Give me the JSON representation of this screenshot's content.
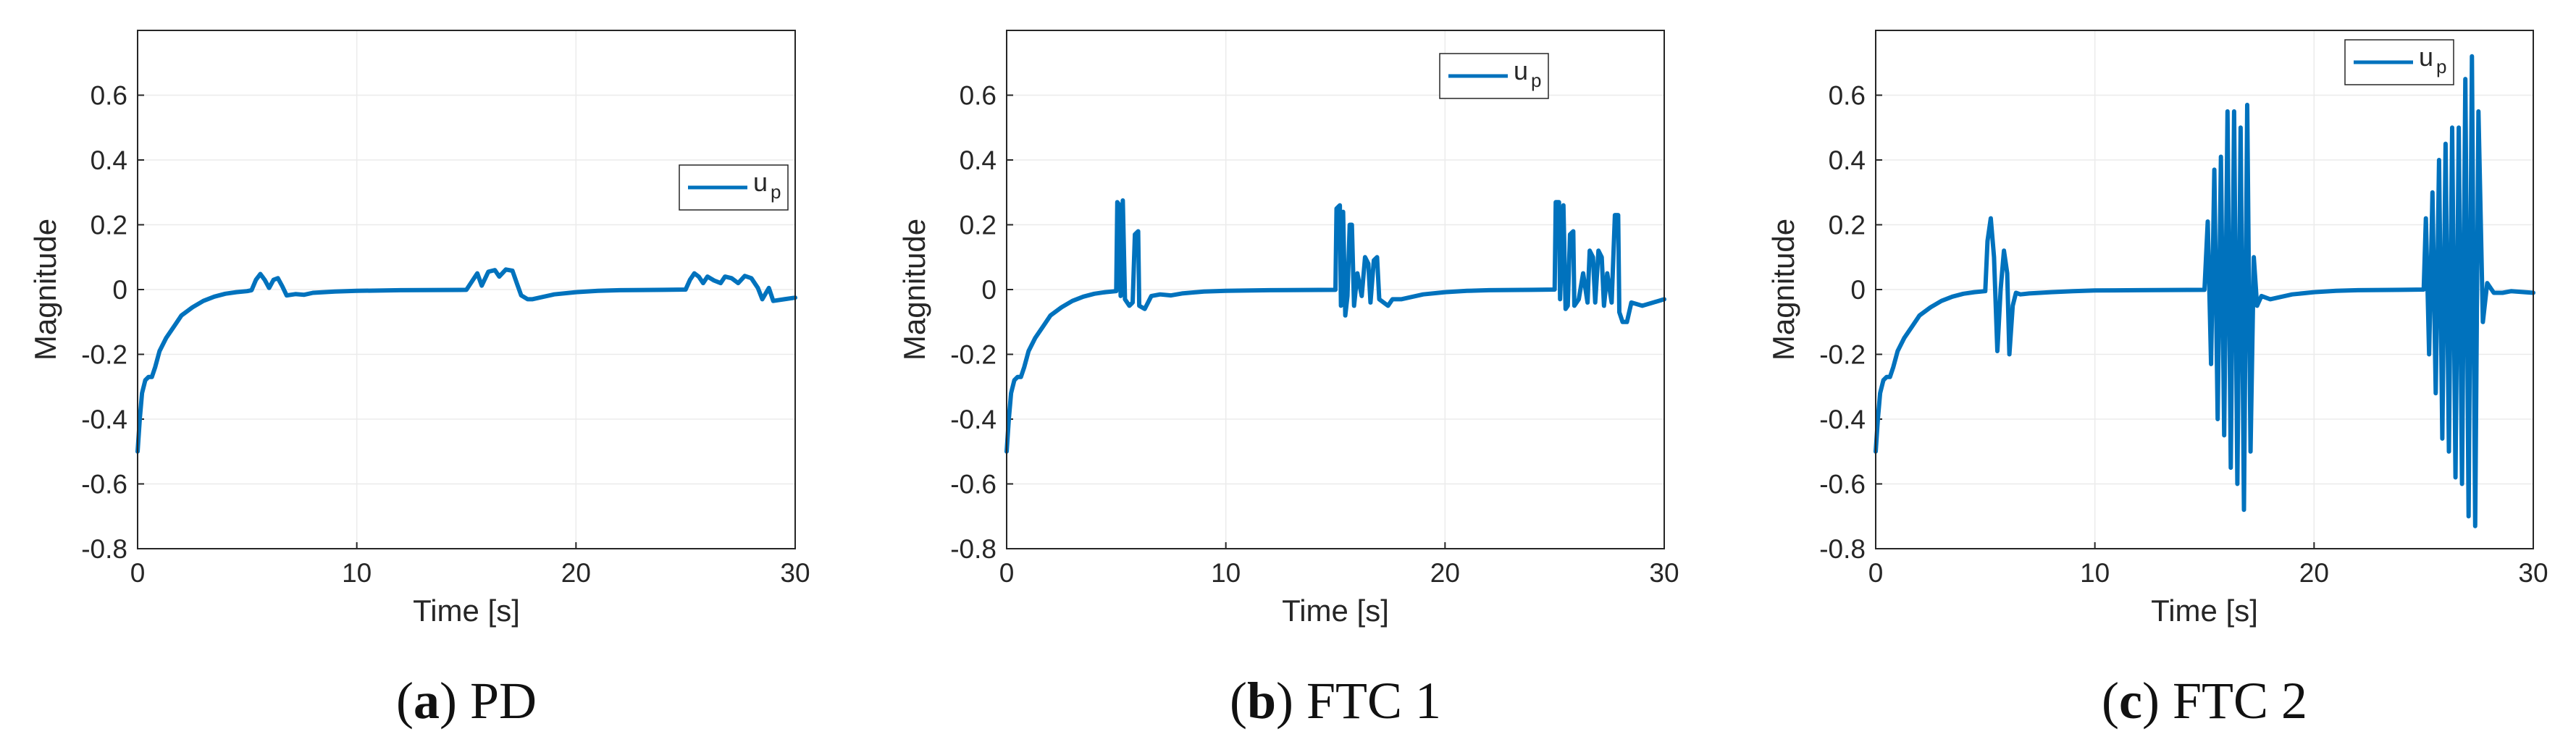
{
  "colors": {
    "series": "#0072BD",
    "grid": "#ebebeb",
    "axis": "#262626",
    "background": "#ffffff"
  },
  "chart_data": [
    {
      "type": "line",
      "id": "a",
      "caption": {
        "letter": "a",
        "name": "PD"
      },
      "xlabel": "Time [s]",
      "ylabel": "Magnitude",
      "xlim": [
        0,
        30
      ],
      "ylim": [
        -0.8,
        0.8
      ],
      "xticks": [
        0,
        10,
        20,
        30
      ],
      "yticks": [
        -0.8,
        -0.6,
        -0.4,
        -0.2,
        0,
        0.2,
        0.4,
        0.6
      ],
      "ytick_labels": [
        "-0.8",
        "-0.6",
        "-0.4",
        "-0.2",
        "0",
        "0.2",
        "0.4",
        "0.6"
      ],
      "grid": true,
      "legend": {
        "base": "u",
        "sub": "p",
        "position": "right, upper-middle"
      },
      "series": [
        {
          "name": "u_p",
          "points": [
            [
              0,
              -0.5
            ],
            [
              0.1,
              -0.4
            ],
            [
              0.2,
              -0.32
            ],
            [
              0.35,
              -0.28
            ],
            [
              0.5,
              -0.27
            ],
            [
              0.65,
              -0.27
            ],
            [
              0.8,
              -0.24
            ],
            [
              1,
              -0.19
            ],
            [
              1.3,
              -0.15
            ],
            [
              1.7,
              -0.11
            ],
            [
              2,
              -0.08
            ],
            [
              2.5,
              -0.055
            ],
            [
              3,
              -0.035
            ],
            [
              3.5,
              -0.022
            ],
            [
              4,
              -0.013
            ],
            [
              4.5,
              -0.008
            ],
            [
              5,
              -0.005
            ],
            [
              5.2,
              -0.002
            ],
            [
              5.4,
              0.03
            ],
            [
              5.6,
              0.048
            ],
            [
              5.8,
              0.03
            ],
            [
              6,
              0.005
            ],
            [
              6.2,
              0.03
            ],
            [
              6.4,
              0.035
            ],
            [
              6.6,
              0.01
            ],
            [
              6.8,
              -0.018
            ],
            [
              7.2,
              -0.014
            ],
            [
              7.6,
              -0.016
            ],
            [
              8,
              -0.01
            ],
            [
              9,
              -0.006
            ],
            [
              10,
              -0.004
            ],
            [
              12,
              -0.002
            ],
            [
              15,
              -0.001
            ],
            [
              15.3,
              0.03
            ],
            [
              15.5,
              0.05
            ],
            [
              15.7,
              0.012
            ],
            [
              16,
              0.055
            ],
            [
              16.3,
              0.06
            ],
            [
              16.5,
              0.04
            ],
            [
              16.8,
              0.062
            ],
            [
              17.1,
              0.058
            ],
            [
              17.3,
              0.02
            ],
            [
              17.5,
              -0.018
            ],
            [
              17.8,
              -0.03
            ],
            [
              18,
              -0.03
            ],
            [
              19,
              -0.015
            ],
            [
              20,
              -0.008
            ],
            [
              21,
              -0.004
            ],
            [
              22,
              -0.002
            ],
            [
              24,
              -0.001
            ],
            [
              25,
              0
            ],
            [
              25.2,
              0.03
            ],
            [
              25.4,
              0.05
            ],
            [
              25.6,
              0.04
            ],
            [
              25.8,
              0.02
            ],
            [
              26,
              0.04
            ],
            [
              26.3,
              0.028
            ],
            [
              26.6,
              0.02
            ],
            [
              26.8,
              0.04
            ],
            [
              27.1,
              0.035
            ],
            [
              27.4,
              0.02
            ],
            [
              27.7,
              0.042
            ],
            [
              28,
              0.035
            ],
            [
              28.3,
              0.005
            ],
            [
              28.5,
              -0.03
            ],
            [
              28.8,
              0.005
            ],
            [
              29,
              -0.035
            ],
            [
              29.5,
              -0.03
            ],
            [
              30,
              -0.025
            ]
          ]
        }
      ]
    },
    {
      "type": "line",
      "id": "b",
      "caption": {
        "letter": "b",
        "name": "FTC 1"
      },
      "xlabel": "Time [s]",
      "ylabel": "Magnitude",
      "xlim": [
        0,
        30
      ],
      "ylim": [
        -0.8,
        0.8
      ],
      "xticks": [
        0,
        10,
        20,
        30
      ],
      "yticks": [
        -0.8,
        -0.6,
        -0.4,
        -0.2,
        0,
        0.2,
        0.4,
        0.6
      ],
      "ytick_labels": [
        "-0.8",
        "-0.6",
        "-0.4",
        "-0.2",
        "0",
        "0.2",
        "0.4",
        "0.6"
      ],
      "grid": true,
      "legend": {
        "base": "u",
        "sub": "p",
        "position": "top-right"
      },
      "series": [
        {
          "name": "u_p",
          "points": [
            [
              0,
              -0.5
            ],
            [
              0.1,
              -0.4
            ],
            [
              0.2,
              -0.32
            ],
            [
              0.35,
              -0.28
            ],
            [
              0.5,
              -0.27
            ],
            [
              0.65,
              -0.27
            ],
            [
              0.8,
              -0.24
            ],
            [
              1,
              -0.19
            ],
            [
              1.3,
              -0.15
            ],
            [
              1.7,
              -0.11
            ],
            [
              2,
              -0.08
            ],
            [
              2.5,
              -0.055
            ],
            [
              3,
              -0.035
            ],
            [
              3.5,
              -0.022
            ],
            [
              4,
              -0.013
            ],
            [
              4.5,
              -0.008
            ],
            [
              5,
              -0.005
            ],
            [
              5.05,
              0.27
            ],
            [
              5.15,
              0.26
            ],
            [
              5.2,
              -0.02
            ],
            [
              5.3,
              0.275
            ],
            [
              5.4,
              -0.03
            ],
            [
              5.6,
              -0.05
            ],
            [
              5.75,
              -0.04
            ],
            [
              5.85,
              0.17
            ],
            [
              6,
              0.18
            ],
            [
              6.05,
              -0.05
            ],
            [
              6.3,
              -0.06
            ],
            [
              6.6,
              -0.02
            ],
            [
              7,
              -0.015
            ],
            [
              7.5,
              -0.018
            ],
            [
              8,
              -0.012
            ],
            [
              9,
              -0.006
            ],
            [
              10,
              -0.004
            ],
            [
              12,
              -0.002
            ],
            [
              15,
              -0.001
            ],
            [
              15.05,
              0.25
            ],
            [
              15.2,
              0.26
            ],
            [
              15.25,
              -0.05
            ],
            [
              15.35,
              0.24
            ],
            [
              15.45,
              -0.08
            ],
            [
              15.55,
              -0.02
            ],
            [
              15.65,
              0.2
            ],
            [
              15.75,
              0.2
            ],
            [
              15.85,
              -0.05
            ],
            [
              16,
              0.05
            ],
            [
              16.2,
              -0.02
            ],
            [
              16.35,
              0.1
            ],
            [
              16.5,
              0.08
            ],
            [
              16.6,
              -0.04
            ],
            [
              16.75,
              0.09
            ],
            [
              16.9,
              0.1
            ],
            [
              17,
              -0.03
            ],
            [
              17.2,
              -0.04
            ],
            [
              17.4,
              -0.05
            ],
            [
              17.6,
              -0.03
            ],
            [
              18,
              -0.03
            ],
            [
              19,
              -0.015
            ],
            [
              20,
              -0.008
            ],
            [
              21,
              -0.004
            ],
            [
              22,
              -0.002
            ],
            [
              24,
              -0.001
            ],
            [
              25,
              0
            ],
            [
              25.05,
              0.27
            ],
            [
              25.2,
              0.27
            ],
            [
              25.25,
              -0.03
            ],
            [
              25.4,
              0.26
            ],
            [
              25.5,
              -0.06
            ],
            [
              25.6,
              -0.05
            ],
            [
              25.7,
              0.17
            ],
            [
              25.85,
              0.18
            ],
            [
              25.9,
              -0.05
            ],
            [
              26.1,
              -0.03
            ],
            [
              26.3,
              0.05
            ],
            [
              26.5,
              -0.04
            ],
            [
              26.6,
              0.12
            ],
            [
              26.75,
              0.1
            ],
            [
              26.85,
              -0.04
            ],
            [
              27,
              0.12
            ],
            [
              27.15,
              0.1
            ],
            [
              27.25,
              -0.05
            ],
            [
              27.4,
              0.05
            ],
            [
              27.6,
              -0.04
            ],
            [
              27.75,
              0.23
            ],
            [
              27.9,
              0.23
            ],
            [
              27.95,
              -0.07
            ],
            [
              28.1,
              -0.1
            ],
            [
              28.3,
              -0.1
            ],
            [
              28.5,
              -0.04
            ],
            [
              29,
              -0.05
            ],
            [
              29.5,
              -0.04
            ],
            [
              30,
              -0.03
            ]
          ]
        }
      ]
    },
    {
      "type": "line",
      "id": "c",
      "caption": {
        "letter": "c",
        "name": "FTC 2"
      },
      "xlabel": "Time [s]",
      "ylabel": "Magnitude",
      "xlim": [
        0,
        30
      ],
      "ylim": [
        -0.8,
        0.8
      ],
      "xticks": [
        0,
        10,
        20,
        30
      ],
      "yticks": [
        -0.8,
        -0.6,
        -0.4,
        -0.2,
        0,
        0.2,
        0.4,
        0.6
      ],
      "ytick_labels": [
        "-0.8",
        "-0.6",
        "-0.4",
        "-0.2",
        "0",
        "0.2",
        "0.4",
        "0.6"
      ],
      "grid": true,
      "legend": {
        "base": "u",
        "sub": "p",
        "position": "top-right"
      },
      "series": [
        {
          "name": "u_p",
          "points": [
            [
              0,
              -0.5
            ],
            [
              0.1,
              -0.4
            ],
            [
              0.2,
              -0.32
            ],
            [
              0.35,
              -0.28
            ],
            [
              0.5,
              -0.27
            ],
            [
              0.65,
              -0.27
            ],
            [
              0.8,
              -0.24
            ],
            [
              1,
              -0.19
            ],
            [
              1.3,
              -0.15
            ],
            [
              1.7,
              -0.11
            ],
            [
              2,
              -0.08
            ],
            [
              2.5,
              -0.055
            ],
            [
              3,
              -0.035
            ],
            [
              3.5,
              -0.022
            ],
            [
              4,
              -0.013
            ],
            [
              4.5,
              -0.008
            ],
            [
              5,
              -0.005
            ],
            [
              5.1,
              0.15
            ],
            [
              5.25,
              0.22
            ],
            [
              5.4,
              0.1
            ],
            [
              5.55,
              -0.19
            ],
            [
              5.7,
              0
            ],
            [
              5.85,
              0.12
            ],
            [
              6,
              0.05
            ],
            [
              6.1,
              -0.2
            ],
            [
              6.25,
              -0.05
            ],
            [
              6.4,
              -0.01
            ],
            [
              6.6,
              -0.015
            ],
            [
              7,
              -0.012
            ],
            [
              8,
              -0.008
            ],
            [
              9,
              -0.005
            ],
            [
              10,
              -0.003
            ],
            [
              12,
              -0.002
            ],
            [
              15,
              -0.001
            ],
            [
              15.15,
              0.21
            ],
            [
              15.3,
              -0.23
            ],
            [
              15.45,
              0.37
            ],
            [
              15.6,
              -0.4
            ],
            [
              15.75,
              0.41
            ],
            [
              15.9,
              -0.45
            ],
            [
              16.05,
              0.55
            ],
            [
              16.2,
              -0.55
            ],
            [
              16.35,
              0.55
            ],
            [
              16.5,
              -0.6
            ],
            [
              16.65,
              0.5
            ],
            [
              16.8,
              -0.68
            ],
            [
              16.95,
              0.57
            ],
            [
              17.1,
              -0.5
            ],
            [
              17.25,
              0.1
            ],
            [
              17.4,
              -0.05
            ],
            [
              17.6,
              -0.02
            ],
            [
              18,
              -0.03
            ],
            [
              19,
              -0.015
            ],
            [
              20,
              -0.008
            ],
            [
              21,
              -0.004
            ],
            [
              22,
              -0.002
            ],
            [
              24,
              -0.001
            ],
            [
              25,
              0
            ],
            [
              25.1,
              0.22
            ],
            [
              25.25,
              -0.2
            ],
            [
              25.4,
              0.3
            ],
            [
              25.55,
              -0.32
            ],
            [
              25.7,
              0.4
            ],
            [
              25.85,
              -0.46
            ],
            [
              26,
              0.45
            ],
            [
              26.15,
              -0.5
            ],
            [
              26.3,
              0.5
            ],
            [
              26.45,
              -0.58
            ],
            [
              26.6,
              0.5
            ],
            [
              26.75,
              -0.6
            ],
            [
              26.9,
              0.65
            ],
            [
              27.05,
              -0.7
            ],
            [
              27.2,
              0.72
            ],
            [
              27.35,
              -0.73
            ],
            [
              27.5,
              0.55
            ],
            [
              27.7,
              -0.1
            ],
            [
              27.9,
              0.02
            ],
            [
              28.2,
              -0.01
            ],
            [
              28.6,
              -0.01
            ],
            [
              29,
              -0.005
            ],
            [
              30,
              -0.01
            ]
          ]
        }
      ]
    }
  ]
}
